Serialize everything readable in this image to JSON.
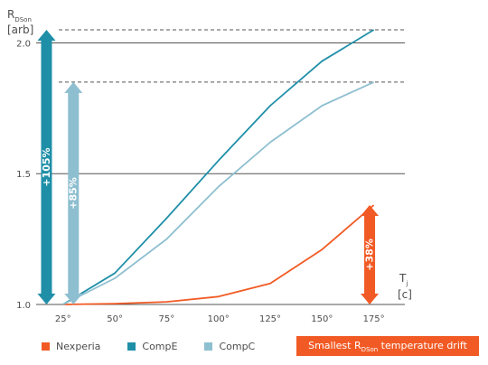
{
  "chart_data": {
    "type": "line",
    "ylabel_main": "R",
    "ylabel_sub": "DSon",
    "ylabel_unit": "[arb]",
    "xlabel_main": "T",
    "xlabel_sub": "j",
    "xlabel_unit": "[c]",
    "x": [
      "25°",
      "50°",
      "75°",
      "100°",
      "125°",
      "150°",
      "175°"
    ],
    "x_values": [
      25,
      50,
      75,
      100,
      125,
      150,
      175
    ],
    "yticks": [
      "2.0",
      "1.5",
      "1.0"
    ],
    "ytick_values": [
      2.0,
      1.5,
      1.0
    ],
    "ylim": [
      1.0,
      2.05
    ],
    "xlim": [
      12,
      190
    ],
    "series": [
      {
        "name": "Nexperia",
        "color": "#f15a24",
        "values": [
          1.0,
          1.003,
          1.01,
          1.03,
          1.08,
          1.21,
          1.38
        ]
      },
      {
        "name": "CompE",
        "color": "#1f8fa8",
        "values": [
          1.0,
          1.12,
          1.33,
          1.55,
          1.76,
          1.93,
          2.05
        ]
      },
      {
        "name": "CompC",
        "color": "#8ebfd0",
        "values": [
          1.0,
          1.1,
          1.25,
          1.45,
          1.62,
          1.76,
          1.85
        ]
      }
    ],
    "annotations": [
      {
        "text": "+105%",
        "color": "#1f8fa8",
        "x": 17,
        "y_from": 1.0,
        "y_to": 2.05
      },
      {
        "text": "+85%",
        "color": "#8ebfd0",
        "x": 30,
        "y_from": 1.0,
        "y_to": 1.85
      },
      {
        "text": "+38%",
        "color": "#f15a24",
        "x": 173,
        "y_from": 1.0,
        "y_to": 1.38
      }
    ],
    "reference_lines": [
      2.05,
      1.85
    ],
    "grid": true
  },
  "legend": {
    "items": [
      {
        "label": "Nexperia",
        "color": "#f15a24"
      },
      {
        "label": "CompE",
        "color": "#1f8fa8"
      },
      {
        "label": "CompC",
        "color": "#8ebfd0"
      }
    ]
  },
  "banner": {
    "text_before": "Smallest R",
    "text_sub": "DSon",
    "text_after": " temperature drift",
    "color": "#f15a24"
  }
}
